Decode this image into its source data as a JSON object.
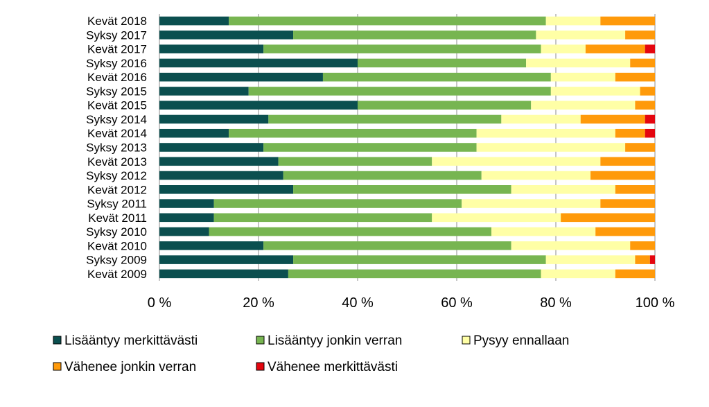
{
  "chart_data": {
    "type": "bar",
    "orientation": "horizontal",
    "stacked": "percent",
    "categories": [
      "Kevät 2018",
      "Syksy 2017",
      "Kevät 2017",
      "Syksy 2016",
      "Kevät 2016",
      "Syksy 2015",
      "Kevät 2015",
      "Syksy 2014",
      "Kevät 2014",
      "Syksy 2013",
      "Kevät 2013",
      "Syksy 2012",
      "Kevät 2012",
      "Syksy 2011",
      "Kevät 2011",
      "Syksy 2010",
      "Kevät 2010",
      "Syksy 2009",
      "Kevät 2009"
    ],
    "series": [
      {
        "name": "Lisääntyy merkittävästi",
        "color": "#0b4f4f",
        "values": [
          14,
          27,
          21,
          40,
          33,
          18,
          40,
          22,
          14,
          21,
          24,
          25,
          27,
          11,
          11,
          10,
          21,
          27,
          26
        ]
      },
      {
        "name": "Lisääntyy jonkin verran",
        "color": "#77b551",
        "values": [
          64,
          49,
          56,
          34,
          46,
          61,
          35,
          47,
          50,
          43,
          31,
          40,
          44,
          50,
          44,
          57,
          50,
          51,
          51
        ]
      },
      {
        "name": "Pysyy ennallaan",
        "color": "#ffffa6",
        "values": [
          11,
          18,
          9,
          21,
          13,
          18,
          21,
          16,
          28,
          30,
          34,
          22,
          21,
          28,
          26,
          21,
          24,
          18,
          15
        ]
      },
      {
        "name": "Vähenee jonkin verran",
        "color": "#ff9a0a",
        "values": [
          11,
          6,
          12,
          5,
          8,
          3,
          4,
          13,
          6,
          6,
          11,
          13,
          8,
          11,
          19,
          12,
          5,
          3,
          8
        ]
      },
      {
        "name": "Vähenee merkittävästi",
        "color": "#e4060f",
        "values": [
          0,
          0,
          2,
          0,
          0,
          0,
          0,
          2,
          2,
          0,
          0,
          0,
          0,
          0,
          0,
          0,
          0,
          1,
          0
        ]
      }
    ],
    "xlim": [
      0,
      100
    ],
    "xticks": [
      "0 %",
      "20 %",
      "40 %",
      "60 %",
      "80 %",
      "100 %"
    ],
    "grid": true,
    "legend_position": "bottom",
    "title": "",
    "xlabel": "",
    "ylabel": ""
  }
}
